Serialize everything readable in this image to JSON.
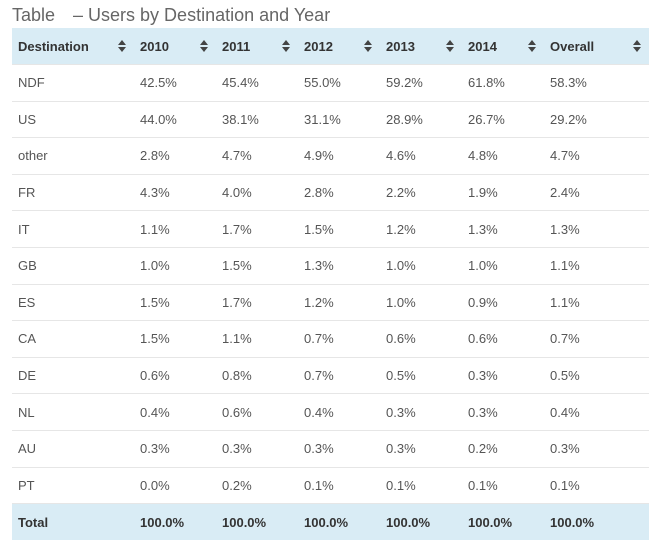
{
  "title": {
    "prefix": "Table",
    "text": "– Users by Destination and Year"
  },
  "table": {
    "headers": [
      "Destination",
      "2010",
      "2011",
      "2012",
      "2013",
      "2014",
      "Overall"
    ],
    "rows": [
      [
        "NDF",
        "42.5%",
        "45.4%",
        "55.0%",
        "59.2%",
        "61.8%",
        "58.3%"
      ],
      [
        "US",
        "44.0%",
        "38.1%",
        "31.1%",
        "28.9%",
        "26.7%",
        "29.2%"
      ],
      [
        "other",
        "2.8%",
        "4.7%",
        "4.9%",
        "4.6%",
        "4.8%",
        "4.7%"
      ],
      [
        "FR",
        "4.3%",
        "4.0%",
        "2.8%",
        "2.2%",
        "1.9%",
        "2.4%"
      ],
      [
        "IT",
        "1.1%",
        "1.7%",
        "1.5%",
        "1.2%",
        "1.3%",
        "1.3%"
      ],
      [
        "GB",
        "1.0%",
        "1.5%",
        "1.3%",
        "1.0%",
        "1.0%",
        "1.1%"
      ],
      [
        "ES",
        "1.5%",
        "1.7%",
        "1.2%",
        "1.0%",
        "0.9%",
        "1.1%"
      ],
      [
        "CA",
        "1.5%",
        "1.1%",
        "0.7%",
        "0.6%",
        "0.6%",
        "0.7%"
      ],
      [
        "DE",
        "0.6%",
        "0.8%",
        "0.7%",
        "0.5%",
        "0.3%",
        "0.5%"
      ],
      [
        "NL",
        "0.4%",
        "0.6%",
        "0.4%",
        "0.3%",
        "0.3%",
        "0.4%"
      ],
      [
        "AU",
        "0.3%",
        "0.3%",
        "0.3%",
        "0.3%",
        "0.2%",
        "0.3%"
      ],
      [
        "PT",
        "0.0%",
        "0.2%",
        "0.1%",
        "0.1%",
        "0.1%",
        "0.1%"
      ]
    ],
    "footer": [
      "Total",
      "100.0%",
      "100.0%",
      "100.0%",
      "100.0%",
      "100.0%",
      "100.0%"
    ]
  },
  "icons": {
    "sort": "sort-both-icon"
  },
  "colors": {
    "header_bg": "#d9ecf5"
  }
}
